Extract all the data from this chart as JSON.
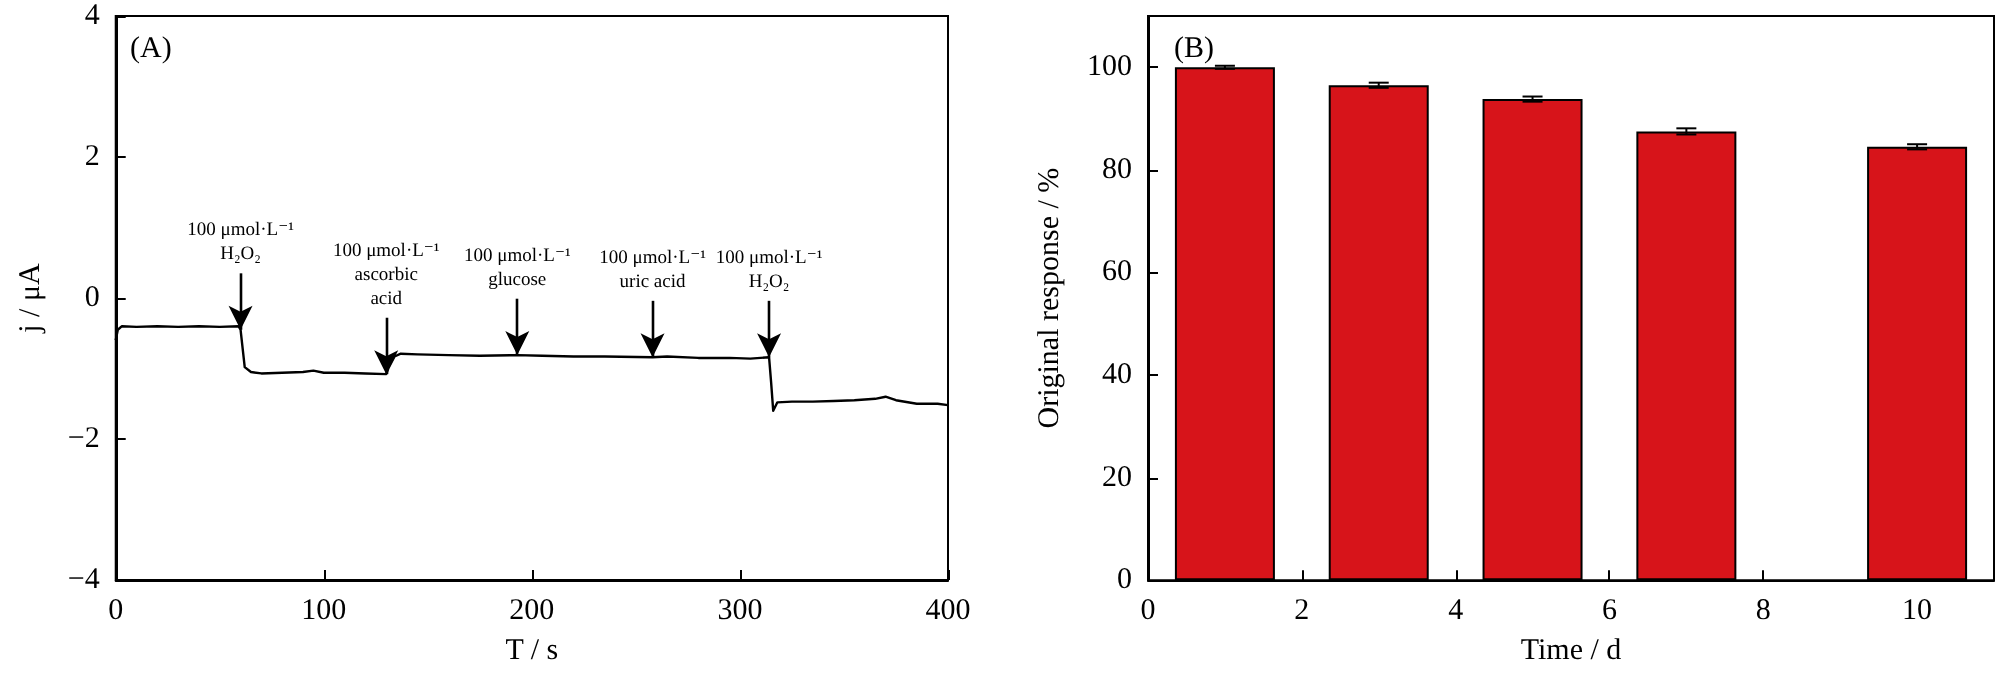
{
  "chart_data": [
    {
      "type": "line",
      "title": "(A)",
      "xlabel": "T / s",
      "ylabel": "j / μA",
      "xlim": [
        0,
        400
      ],
      "ylim": [
        -4,
        4
      ],
      "xticks": [
        0,
        100,
        200,
        300,
        400
      ],
      "yticks": [
        {
          "value": -4,
          "label": "−4"
        },
        {
          "value": -2,
          "label": "−2"
        },
        0,
        2,
        4
      ],
      "grid": false,
      "marker": "none",
      "line_style": "solid",
      "series": [
        {
          "color": "#000000",
          "x": [
            0,
            1,
            3,
            10,
            20,
            30,
            40,
            50,
            59,
            60,
            62,
            65,
            70,
            80,
            90,
            95,
            100,
            110,
            120,
            130,
            131,
            134,
            137,
            145,
            160,
            175,
            193,
            205,
            220,
            235,
            258,
            265,
            280,
            295,
            305,
            314,
            315,
            316,
            318,
            325,
            335,
            345,
            355,
            365,
            370,
            375,
            385,
            395,
            400
          ],
          "values": [
            -0.6,
            -0.45,
            -0.4,
            -0.41,
            -0.4,
            -0.41,
            -0.4,
            -0.41,
            -0.4,
            -0.45,
            -0.98,
            -1.05,
            -1.07,
            -1.06,
            -1.05,
            -1.03,
            -1.06,
            -1.06,
            -1.07,
            -1.08,
            -1.0,
            -0.83,
            -0.79,
            -0.8,
            -0.81,
            -0.82,
            -0.81,
            -0.82,
            -0.83,
            -0.83,
            -0.84,
            -0.83,
            -0.85,
            -0.85,
            -0.86,
            -0.84,
            -1.2,
            -1.6,
            -1.48,
            -1.47,
            -1.47,
            -1.46,
            -1.45,
            -1.43,
            -1.4,
            -1.45,
            -1.5,
            -1.5,
            -1.52
          ]
        }
      ],
      "annotations": [
        {
          "text": "100 μmol·L⁻¹\nH₂O₂",
          "x": 60,
          "y": -0.45
        },
        {
          "text": "100 μmol·L⁻¹\nascorbic\nacid",
          "x": 130,
          "y": -1.08
        },
        {
          "text": "100 μmol·L⁻¹\nglucose",
          "x": 193,
          "y": -0.81
        },
        {
          "text": "100 μmol·L⁻¹\nuric acid",
          "x": 258,
          "y": -0.84
        },
        {
          "text": "100 μmol·L⁻¹\nH₂O₂",
          "x": 314,
          "y": -0.84
        }
      ]
    },
    {
      "type": "bar",
      "title": "(B)",
      "xlabel": "Time / d",
      "ylabel": "Original response / %",
      "x": [
        1,
        3,
        5,
        7,
        10
      ],
      "xlim": [
        0,
        11
      ],
      "ylim": [
        0,
        110
      ],
      "xticks": [
        0,
        2,
        4,
        6,
        8,
        10
      ],
      "yticks": [
        0,
        20,
        40,
        60,
        80,
        100
      ],
      "grid": false,
      "series": [
        {
          "color": "#d7141a",
          "values": [
            100,
            96.5,
            93.8,
            87.5,
            84.5
          ],
          "errors": [
            0.3,
            0.5,
            0.5,
            0.6,
            0.5
          ]
        }
      ]
    }
  ]
}
